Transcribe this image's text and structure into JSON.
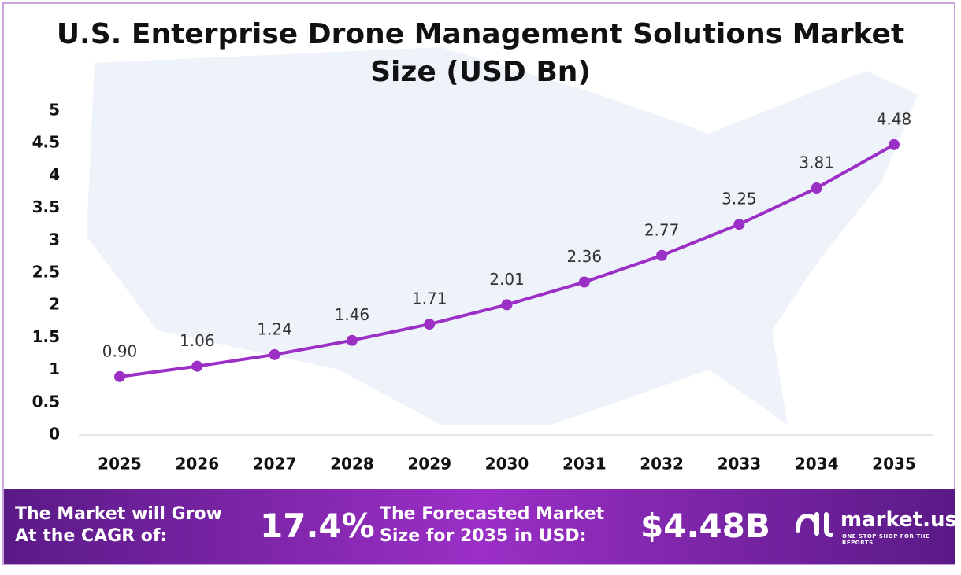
{
  "chart_data": {
    "type": "line",
    "title": "U.S. Enterprise Drone Management Solutions Market Size (USD Bn)",
    "categories": [
      "2025",
      "2026",
      "2027",
      "2028",
      "2029",
      "2030",
      "2031",
      "2032",
      "2033",
      "2034",
      "2035"
    ],
    "series": [
      {
        "name": "Market Size",
        "color": "#9b2fc6",
        "values": [
          0.9,
          1.06,
          1.24,
          1.46,
          1.71,
          2.01,
          2.36,
          2.77,
          3.25,
          3.81,
          4.48
        ],
        "value_labels": [
          "0.90",
          "1.06",
          "1.24",
          "1.46",
          "1.71",
          "2.01",
          "2.36",
          "2.77",
          "3.25",
          "3.81",
          "4.48"
        ]
      }
    ],
    "ylim": [
      0,
      5
    ],
    "yticks": [
      0,
      0.5,
      1,
      1.5,
      2,
      2.5,
      3,
      3.5,
      4,
      4.5,
      5
    ],
    "grid": false
  },
  "footer": {
    "cagr_text": "The Market will Grow At the CAGR of:",
    "cagr_value": "17.4%",
    "forecast_text": "The Forecasted Market Size for 2035 in USD:",
    "forecast_value": "$4.48B",
    "brand": "market.us",
    "tagline": "ONE STOP SHOP FOR THE REPORTS"
  }
}
